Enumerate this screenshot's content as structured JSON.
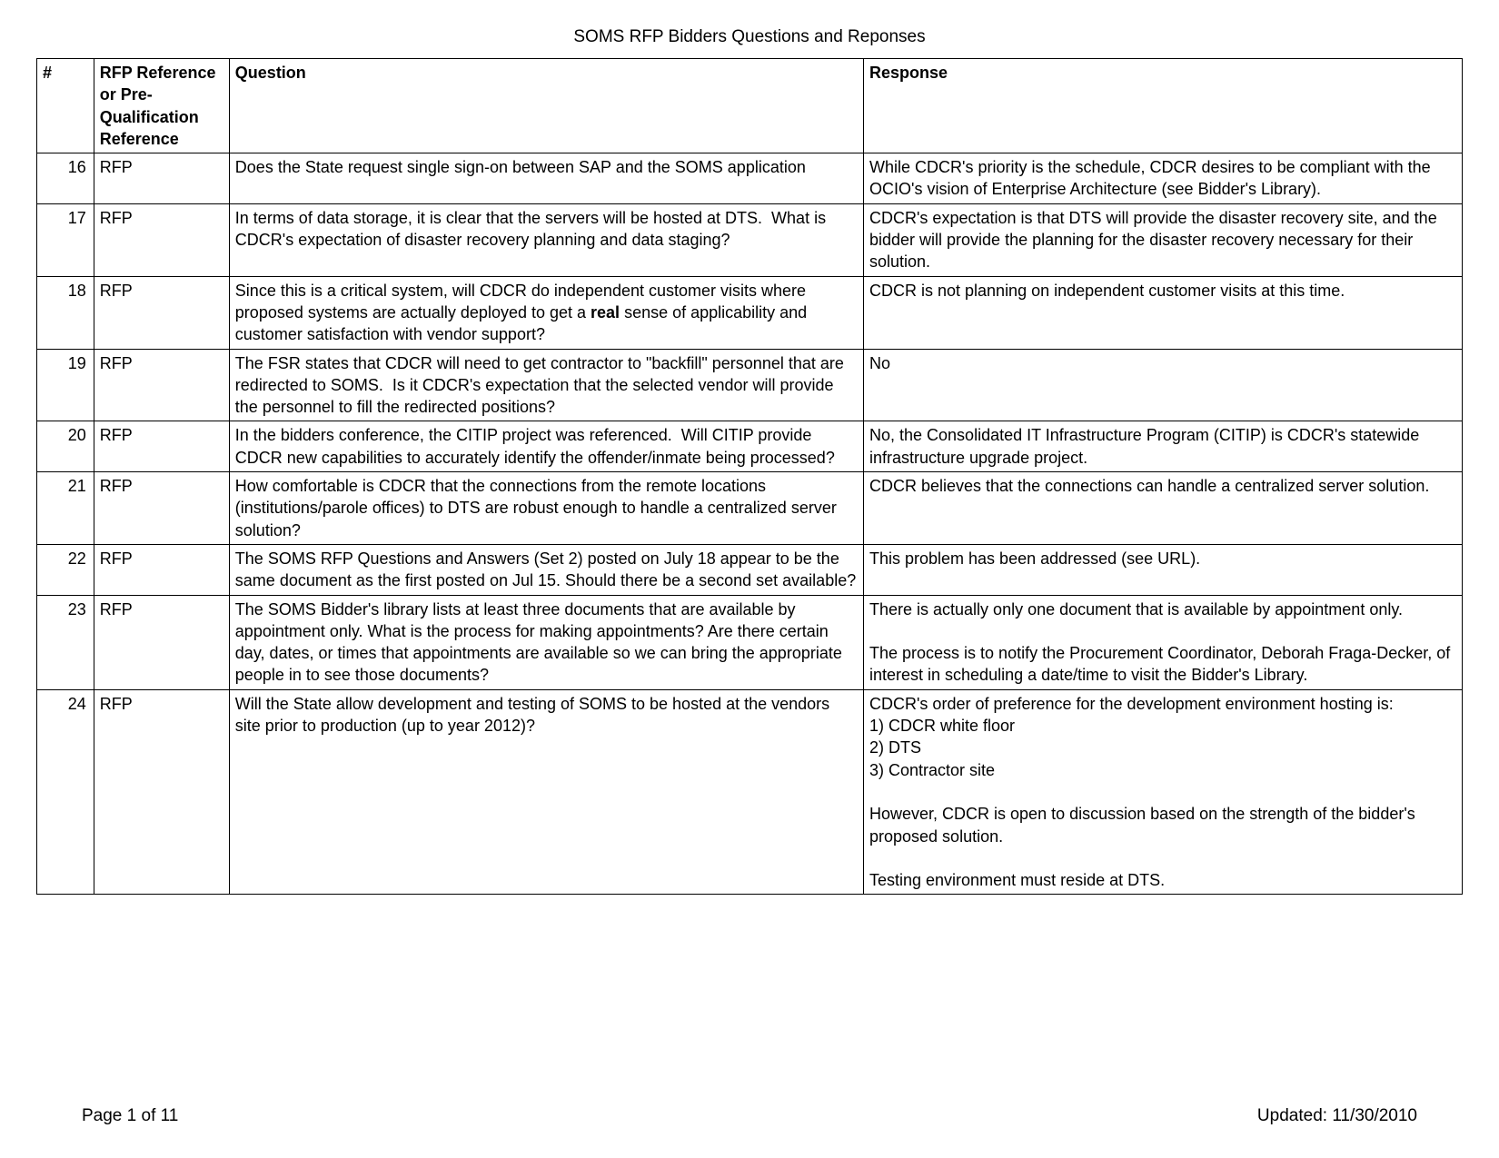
{
  "title": "SOMS RFP Bidders Questions and Reponses",
  "columns": {
    "num": "#",
    "ref": "RFP Reference or Pre-Qualification Reference",
    "question": "Question",
    "response": "Response"
  },
  "rows": [
    {
      "num": "16",
      "ref": "RFP",
      "question": "Does the State request single sign-on between SAP and the SOMS application",
      "response": "While CDCR's priority is the schedule, CDCR desires to be compliant with the OCIO's vision of Enterprise Architecture (see Bidder's Library)."
    },
    {
      "num": "17",
      "ref": "RFP",
      "question": "In terms of data storage, it is clear that the servers will be hosted at DTS.  What is CDCR's expectation of disaster recovery planning and data staging?",
      "response": "CDCR's expectation is that DTS will provide the disaster recovery site, and the bidder will provide the planning for the disaster recovery necessary for their solution."
    },
    {
      "num": "18",
      "ref": "RFP",
      "question_pre": "Since this is a critical system, will CDCR do independent customer visits where proposed systems are actually deployed to get a ",
      "question_bold": "real",
      "question_post": " sense of applicability and customer satisfaction with vendor support?",
      "response": "CDCR is not planning on independent customer visits at this time."
    },
    {
      "num": "19",
      "ref": "RFP",
      "question": "The FSR states that CDCR will need to get contractor to \"backfill\" personnel that are redirected to SOMS.  Is it CDCR's expectation that the selected vendor will provide the personnel to fill the redirected positions?\n",
      "response": "No"
    },
    {
      "num": "20",
      "ref": "RFP",
      "question": "In the bidders conference, the CITIP project was referenced.  Will CITIP provide CDCR new capabilities to accurately identify the offender/inmate being processed?",
      "response": "No, the Consolidated IT Infrastructure Program (CITIP) is CDCR's statewide infrastructure upgrade project."
    },
    {
      "num": "21",
      "ref": "RFP",
      "question": "How comfortable is CDCR that the connections from the remote locations (institutions/parole offices) to DTS are robust enough to handle a centralized server solution?",
      "response": "CDCR believes that the connections can handle a centralized server solution."
    },
    {
      "num": "22",
      "ref": "RFP",
      "question": "The SOMS RFP Questions and Answers (Set 2) posted on July 18 appear to be the same document as the first posted on Jul 15. Should there be a second set available?",
      "response": "This problem has been addressed (see URL)."
    },
    {
      "num": "23",
      "ref": "RFP",
      "question": "The SOMS Bidder's library lists at least three documents that are available by appointment only. What is the process for making appointments? Are there certain day, dates, or times that appointments are available so we can bring the appropriate people in to see those documents?",
      "response": "There is actually only one document that is available by appointment only.\n\nThe process is to notify the Procurement Coordinator, Deborah Fraga-Decker, of interest in scheduling a date/time to visit the Bidder's Library."
    },
    {
      "num": "24",
      "ref": "RFP",
      "question": "Will the State allow development and testing of SOMS to be hosted at the vendors site prior to production (up to year 2012)?",
      "response": "CDCR's order of preference for the development environment hosting is:\n1) CDCR white floor\n2) DTS\n3) Contractor site\n\nHowever, CDCR is open to discussion based on the strength of the bidder's proposed solution.\n\nTesting environment must reside at DTS."
    }
  ],
  "footer": {
    "page": "Page 1 of 11",
    "updated": "Updated: 11/30/2010"
  }
}
